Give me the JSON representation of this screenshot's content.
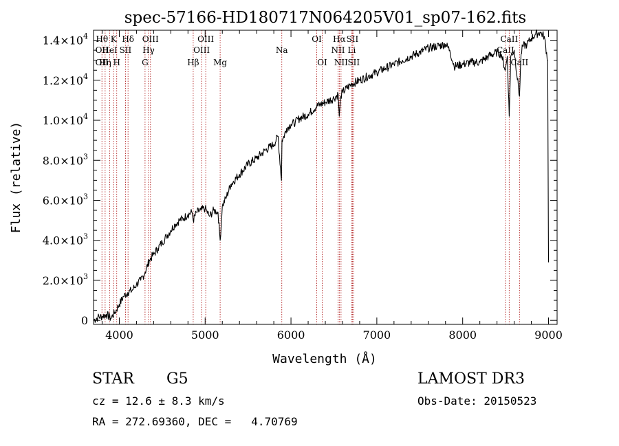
{
  "chart_data": {
    "type": "line",
    "title": "spec-57166-HD180717N064205V01_sp07-162.fits",
    "xlabel": "Wavelength (Å)",
    "ylabel": "Flux (relative)",
    "xlim": [
      3700,
      9100
    ],
    "ylim": [
      -200,
      14500
    ],
    "x_ticks": [
      4000,
      5000,
      6000,
      7000,
      8000,
      9000
    ],
    "x_tick_labels": [
      "4000",
      "5000",
      "6000",
      "7000",
      "8000",
      "9000"
    ],
    "y_ticks": [
      {
        "value": 0,
        "mantissa": "0",
        "exponent": ""
      },
      {
        "value": 2000,
        "mantissa": "2.0×10",
        "exponent": "3"
      },
      {
        "value": 4000,
        "mantissa": "4.0×10",
        "exponent": "3"
      },
      {
        "value": 6000,
        "mantissa": "6.0×10",
        "exponent": "3"
      },
      {
        "value": 8000,
        "mantissa": "8.0×10",
        "exponent": "3"
      },
      {
        "value": 10000,
        "mantissa": "1.0×10",
        "exponent": "4"
      },
      {
        "value": 12000,
        "mantissa": "1.2×10",
        "exponent": "4"
      },
      {
        "value": 14000,
        "mantissa": "1.4×10",
        "exponent": "4"
      }
    ],
    "series": [
      {
        "name": "spectrum",
        "color": "#000000",
        "x": [
          3700,
          3750,
          3800,
          3850,
          3900,
          3950,
          4000,
          4050,
          4100,
          4150,
          4200,
          4250,
          4300,
          4350,
          4400,
          4450,
          4500,
          4550,
          4600,
          4650,
          4700,
          4750,
          4800,
          4850,
          4861,
          4900,
          4950,
          5000,
          5050,
          5100,
          5150,
          5175,
          5200,
          5250,
          5300,
          5400,
          5500,
          5600,
          5700,
          5800,
          5850,
          5889,
          5895,
          5910,
          5950,
          6000,
          6050,
          6100,
          6200,
          6300,
          6400,
          6500,
          6550,
          6563,
          6580,
          6600,
          6700,
          6800,
          6900,
          7000,
          7100,
          7200,
          7300,
          7400,
          7500,
          7600,
          7700,
          7800,
          7850,
          7900,
          8000,
          8100,
          8200,
          8300,
          8400,
          8450,
          8498,
          8520,
          8542,
          8560,
          8600,
          8662,
          8680,
          8700,
          8750,
          8800,
          8850,
          8900,
          8950,
          8990,
          9000
        ],
        "y": [
          0,
          150,
          200,
          300,
          100,
          400,
          800,
          1200,
          1400,
          1500,
          1800,
          2000,
          2400,
          3000,
          3300,
          3600,
          3900,
          4200,
          4500,
          4800,
          5000,
          5100,
          5300,
          5400,
          5000,
          5400,
          5500,
          5600,
          5200,
          5500,
          5400,
          4000,
          5700,
          6200,
          6800,
          7300,
          7800,
          8100,
          8500,
          8800,
          9200,
          7000,
          9000,
          9100,
          9600,
          9800,
          9900,
          10100,
          10300,
          10700,
          10900,
          11100,
          11300,
          10200,
          11200,
          11400,
          11800,
          12000,
          12200,
          12400,
          12600,
          12800,
          13000,
          13200,
          13400,
          13600,
          13700,
          13800,
          13500,
          12700,
          12800,
          12900,
          12900,
          13200,
          13400,
          13300,
          12500,
          13200,
          10200,
          13200,
          13500,
          11200,
          13300,
          13700,
          13800,
          14100,
          14300,
          14400,
          14200,
          13000,
          2900
        ]
      }
    ],
    "line_markers": [
      {
        "wl": 3798,
        "row1": "Hθ",
        "row2": "OII",
        "row3": "OII"
      },
      {
        "wl": 3835,
        "row1": "",
        "row2": "",
        "row3": "Hη"
      },
      {
        "wl": 3889,
        "row1": "",
        "row2": "HeI",
        "row3": ""
      },
      {
        "wl": 3934,
        "row1": "K",
        "row2": "",
        "row3": ""
      },
      {
        "wl": 3970,
        "row1": "",
        "row2": "",
        "row3": "H"
      },
      {
        "wl": 4072,
        "row1": "",
        "row2": "SII",
        "row3": ""
      },
      {
        "wl": 4102,
        "row1": "Hδ",
        "row2": "",
        "row3": ""
      },
      {
        "wl": 4300,
        "row1": "",
        "row2": "",
        "row3": "G"
      },
      {
        "wl": 4341,
        "row1": "",
        "row2": "Hγ",
        "row3": ""
      },
      {
        "wl": 4363,
        "row1": "OIII",
        "row2": "",
        "row3": ""
      },
      {
        "wl": 4861,
        "row1": "",
        "row2": "",
        "row3": "Hβ"
      },
      {
        "wl": 4959,
        "row1": "",
        "row2": "OIII",
        "row3": ""
      },
      {
        "wl": 5007,
        "row1": "OIII",
        "row2": "",
        "row3": ""
      },
      {
        "wl": 5175,
        "row1": "",
        "row2": "",
        "row3": "Mg"
      },
      {
        "wl": 5893,
        "row1": "",
        "row2": "Na",
        "row3": ""
      },
      {
        "wl": 6300,
        "row1": "OI",
        "row2": "",
        "row3": ""
      },
      {
        "wl": 6364,
        "row1": "",
        "row2": "",
        "row3": "OI"
      },
      {
        "wl": 6548,
        "row1": "",
        "row2": "NII",
        "row3": ""
      },
      {
        "wl": 6563,
        "row1": "Hα",
        "row2": "",
        "row3": ""
      },
      {
        "wl": 6583,
        "row1": "",
        "row2": "",
        "row3": "NII"
      },
      {
        "wl": 6708,
        "row1": "",
        "row2": "Li",
        "row3": ""
      },
      {
        "wl": 6716,
        "row1": "SII",
        "row2": "",
        "row3": ""
      },
      {
        "wl": 6731,
        "row1": "",
        "row2": "",
        "row3": "SII"
      },
      {
        "wl": 8498,
        "row1": "",
        "row2": "CaII",
        "row3": ""
      },
      {
        "wl": 8542,
        "row1": "CaII",
        "row2": "",
        "row3": ""
      },
      {
        "wl": 8662,
        "row1": "",
        "row2": "",
        "row3": "CaII"
      }
    ]
  },
  "footer": {
    "object_class": "STAR",
    "subclass": "G5",
    "survey": "LAMOST DR3",
    "cz": "cz = 12.6 ± 8.3 km/s",
    "obs_date": "Obs-Date: 20150523",
    "coords": "RA = 272.69360, DEC =   4.70769"
  }
}
